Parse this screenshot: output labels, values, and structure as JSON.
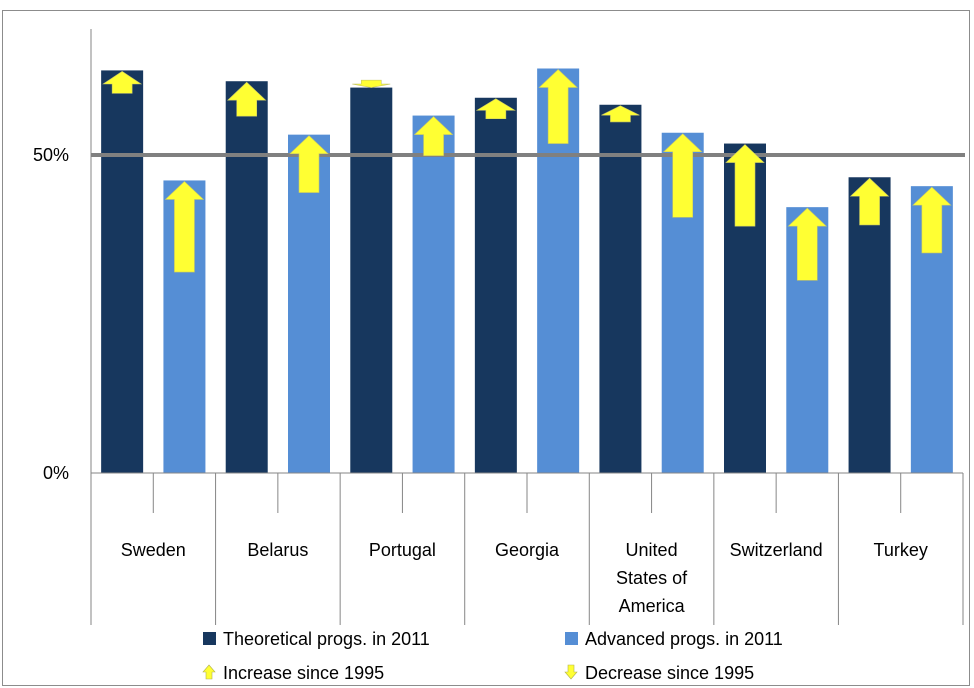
{
  "chart_data": {
    "type": "bar",
    "categories": [
      "Sweden",
      "Belarus",
      "Portugal",
      "Georgia",
      "United States of America",
      "Switzerland",
      "Turkey"
    ],
    "category_lines": [
      [
        "Sweden"
      ],
      [
        "Belarus"
      ],
      [
        "Portugal"
      ],
      [
        "Georgia"
      ],
      [
        "United",
        "States of",
        "America"
      ],
      [
        "Switzerland"
      ],
      [
        "Turkey"
      ]
    ],
    "series": [
      {
        "name": "Theoretical progs. in 2011",
        "color": "#17375e",
        "values": [
          0.633,
          0.616,
          0.606,
          0.59,
          0.579,
          0.518,
          0.465
        ],
        "values_1995": [
          0.597,
          0.561,
          0.616,
          0.557,
          0.552,
          0.388,
          0.39
        ]
      },
      {
        "name": "Advanced progs. in 2011",
        "color": "#558ed5",
        "values": [
          0.46,
          0.532,
          0.562,
          0.636,
          0.535,
          0.418,
          0.451
        ],
        "values_1995": [
          0.316,
          0.441,
          0.499,
          0.518,
          0.402,
          0.303,
          0.346
        ]
      }
    ],
    "yticks": [
      {
        "value": 0,
        "label": "0%"
      },
      {
        "value": 0.5,
        "label": "50%"
      }
    ],
    "ylim": [
      0,
      0.7
    ],
    "reference_line": 0.5,
    "reference_color": "#808080",
    "arrow_color": "#ffff33",
    "legend": {
      "position": "bottom",
      "items": [
        {
          "label": "Theoretical progs. in 2011",
          "marker": "square",
          "color": "#17375e"
        },
        {
          "label": "Advanced progs. in 2011",
          "marker": "square",
          "color": "#558ed5"
        },
        {
          "label": "Increase since 1995",
          "marker": "up-arrow",
          "color": "#ffff33"
        },
        {
          "label": "Decrease since 1995",
          "marker": "down-arrow",
          "color": "#ffff33"
        }
      ]
    },
    "title": "",
    "xlabel": "",
    "ylabel": ""
  }
}
